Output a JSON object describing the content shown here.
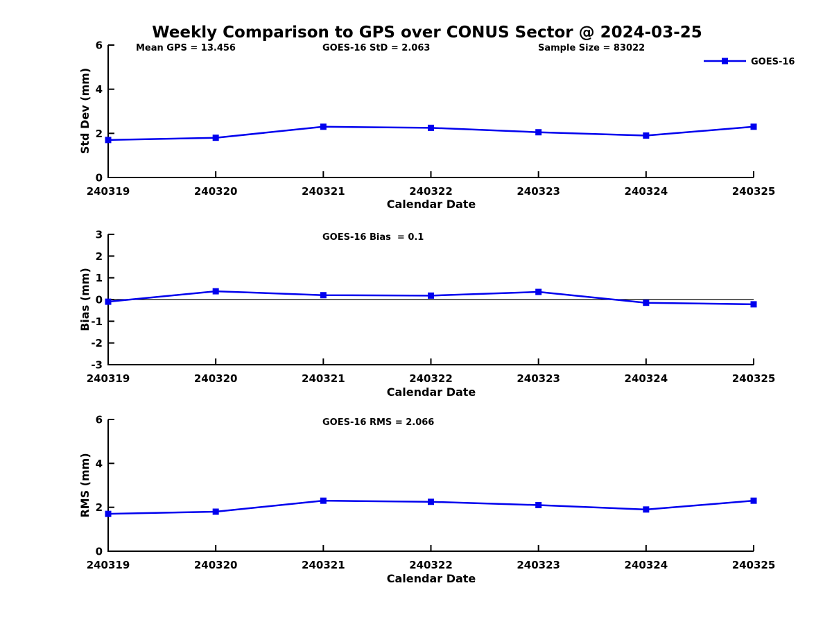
{
  "title": "Weekly Comparison to GPS over CONUS Sector @ 2024-03-25",
  "legend": {
    "label": "GOES-16",
    "color": "#0000ee",
    "position": "top-right",
    "marker": "square"
  },
  "chart_data": [
    {
      "type": "line",
      "id": "std-dev",
      "ylabel": "Std Dev (mm)",
      "xlabel": "Calendar Date",
      "categories": [
        "240319",
        "240320",
        "240321",
        "240322",
        "240323",
        "240324",
        "240325"
      ],
      "ylim": [
        0,
        6
      ],
      "yticks": [
        0,
        2,
        4,
        6
      ],
      "grid": false,
      "zero_line": false,
      "annotations": [
        {
          "text": "Mean GPS = 13.456"
        },
        {
          "text": "GOES-16 StD = 2.063"
        },
        {
          "text": "Sample Size = 83022"
        }
      ],
      "series": [
        {
          "name": "GOES-16",
          "color": "#0000ee",
          "marker": "square",
          "values": [
            1.7,
            1.8,
            2.3,
            2.25,
            2.05,
            1.9,
            2.3
          ]
        }
      ]
    },
    {
      "type": "line",
      "id": "bias",
      "ylabel": "Bias (mm)",
      "xlabel": "Calendar Date",
      "categories": [
        "240319",
        "240320",
        "240321",
        "240322",
        "240323",
        "240324",
        "240325"
      ],
      "ylim": [
        -3,
        3
      ],
      "yticks": [
        -3,
        -2,
        -1,
        0,
        1,
        2,
        3
      ],
      "grid": false,
      "zero_line": true,
      "annotations": [
        {
          "text": "GOES-16 Bias  = 0.1"
        }
      ],
      "series": [
        {
          "name": "GOES-16",
          "color": "#0000ee",
          "marker": "square",
          "values": [
            -0.1,
            0.38,
            0.2,
            0.18,
            0.35,
            -0.15,
            -0.22
          ]
        }
      ]
    },
    {
      "type": "line",
      "id": "rms",
      "ylabel": "RMS (mm)",
      "xlabel": "Calendar Date",
      "categories": [
        "240319",
        "240320",
        "240321",
        "240322",
        "240323",
        "240324",
        "240325"
      ],
      "ylim": [
        0,
        6
      ],
      "yticks": [
        0,
        2,
        4,
        6
      ],
      "grid": false,
      "zero_line": false,
      "annotations": [
        {
          "text": "GOES-16 RMS = 2.066"
        }
      ],
      "series": [
        {
          "name": "GOES-16",
          "color": "#0000ee",
          "marker": "square",
          "values": [
            1.7,
            1.8,
            2.3,
            2.25,
            2.1,
            1.9,
            2.3
          ]
        }
      ]
    }
  ]
}
